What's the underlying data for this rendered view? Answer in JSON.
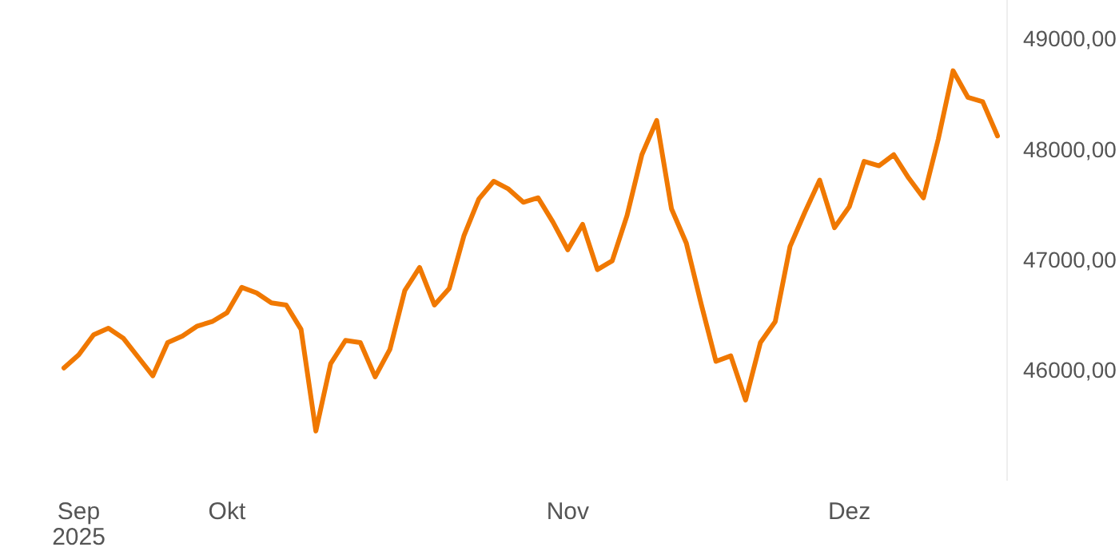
{
  "chart_data": {
    "type": "line",
    "categories": [
      null,
      "Sep\n2025",
      null,
      null,
      null,
      null,
      null,
      null,
      null,
      null,
      null,
      "Okt",
      null,
      null,
      null,
      null,
      null,
      null,
      null,
      null,
      null,
      null,
      null,
      null,
      null,
      null,
      null,
      null,
      null,
      null,
      null,
      null,
      null,
      null,
      "Nov",
      null,
      null,
      null,
      null,
      null,
      null,
      null,
      null,
      null,
      null,
      null,
      null,
      null,
      null,
      null,
      null,
      null,
      null,
      "Dez",
      null,
      null,
      null,
      null,
      null,
      null,
      null,
      null,
      null,
      null
    ],
    "series": [
      {
        "color": "#f07800",
        "values": [
          46020,
          46140,
          46320,
          46380,
          46290,
          46120,
          45950,
          46250,
          46310,
          46400,
          46440,
          46520,
          46750,
          46700,
          46610,
          46590,
          46370,
          45450,
          46060,
          46270,
          46250,
          45940,
          46190,
          46720,
          46930,
          46590,
          46740,
          47220,
          47550,
          47710,
          47640,
          47520,
          47560,
          47340,
          47090,
          47320,
          46910,
          46990,
          47400,
          47950,
          48260,
          47460,
          47150,
          46600,
          46080,
          46130,
          45730,
          46250,
          46440,
          47120,
          47430,
          47720,
          47290,
          47480,
          47890,
          47850,
          47950,
          47740,
          47560,
          48090,
          48710,
          48470,
          48430,
          48120
        ]
      }
    ],
    "ylim": [
      45000,
      49350
    ],
    "yticks": [
      {
        "value": 46000,
        "label": "46000,00"
      },
      {
        "value": 47000,
        "label": "47000,00"
      },
      {
        "value": 48000,
        "label": "48000,00"
      },
      {
        "value": 49000,
        "label": "49000,00"
      }
    ],
    "grid": false,
    "marker": "none",
    "line_style": "solid"
  }
}
